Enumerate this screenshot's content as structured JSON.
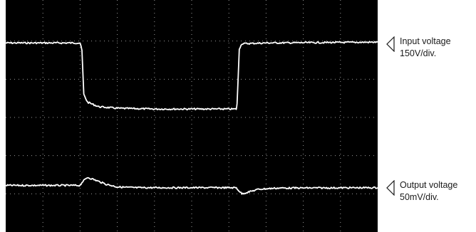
{
  "chart_data": {
    "type": "line",
    "title": "",
    "xlabel": "",
    "ylabel": "",
    "grid": true,
    "grid_divisions": {
      "x": 10,
      "y": 6
    },
    "background": "#000000",
    "trace_color": "#ffffff",
    "series": [
      {
        "name": "Input voltage",
        "scale": "150V/div.",
        "points": [
          [
            0,
            4.95
          ],
          [
            2.0,
            4.95
          ],
          [
            2.05,
            4.75
          ],
          [
            2.1,
            3.6
          ],
          [
            2.2,
            3.4
          ],
          [
            2.5,
            3.28
          ],
          [
            3.0,
            3.24
          ],
          [
            4.0,
            3.22
          ],
          [
            6.2,
            3.22
          ],
          [
            6.22,
            3.35
          ],
          [
            6.28,
            4.8
          ],
          [
            6.35,
            4.93
          ],
          [
            7.0,
            4.95
          ],
          [
            10.0,
            4.97
          ]
        ]
      },
      {
        "name": "Output voltage",
        "scale": "50mV/div.",
        "points": [
          [
            0,
            1.22
          ],
          [
            2.0,
            1.22
          ],
          [
            2.05,
            1.3
          ],
          [
            2.2,
            1.43
          ],
          [
            2.35,
            1.38
          ],
          [
            2.7,
            1.25
          ],
          [
            3.0,
            1.18
          ],
          [
            3.5,
            1.16
          ],
          [
            6.2,
            1.16
          ],
          [
            6.25,
            1.1
          ],
          [
            6.35,
            1.0
          ],
          [
            6.5,
            1.04
          ],
          [
            6.8,
            1.12
          ],
          [
            7.3,
            1.15
          ],
          [
            10.0,
            1.16
          ]
        ]
      }
    ]
  },
  "labels": {
    "caption_fragment": "(",
    "input_line1": "Input voltage",
    "input_line2": "150V/div.",
    "output_line1": "Output voltage",
    "output_line2": "50mV/div."
  }
}
